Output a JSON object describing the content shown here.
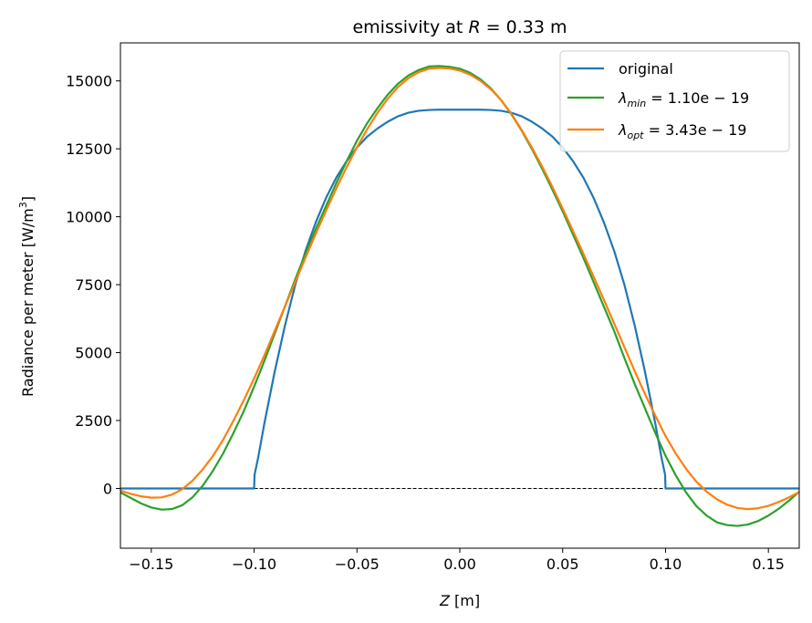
{
  "chart_data": {
    "type": "line",
    "title_prefix": "emissivity at ",
    "title_var": "R",
    "title_suffix": " = 0.33 m",
    "xlabel_var": "Z",
    "xlabel_unit": " [m]",
    "ylabel": "Radiance per meter [W/m",
    "ylabel_sup": "3",
    "ylabel_close": "]",
    "xlim": [
      -0.165,
      0.165
    ],
    "ylim": [
      -2200,
      16400
    ],
    "xticks": [
      -0.15,
      -0.1,
      -0.05,
      0.0,
      0.05,
      0.1,
      0.15
    ],
    "xtick_labels": [
      "−0.15",
      "−0.10",
      "−0.05",
      "0.00",
      "0.05",
      "0.10",
      "0.15"
    ],
    "yticks": [
      0,
      2500,
      5000,
      7500,
      10000,
      12500,
      15000
    ],
    "ytick_labels": [
      "0",
      "2500",
      "5000",
      "7500",
      "10000",
      "12500",
      "15000"
    ],
    "zero_line": true,
    "legend_position": "top-right",
    "series": [
      {
        "name": "original",
        "color": "#1f77b4",
        "x": [
          -0.165,
          -0.1,
          -0.0998,
          -0.098,
          -0.095,
          -0.09,
          -0.085,
          -0.08,
          -0.075,
          -0.07,
          -0.065,
          -0.06,
          -0.055,
          -0.05,
          -0.045,
          -0.04,
          -0.035,
          -0.03,
          -0.025,
          -0.02,
          -0.015,
          -0.01,
          -0.005,
          0.0,
          0.005,
          0.01,
          0.015,
          0.02,
          0.025,
          0.03,
          0.035,
          0.04,
          0.045,
          0.05,
          0.055,
          0.06,
          0.065,
          0.07,
          0.075,
          0.08,
          0.085,
          0.09,
          0.095,
          0.098,
          0.0998,
          0.1,
          0.165
        ],
        "y": [
          0,
          0,
          500,
          1150,
          2400,
          4300,
          6000,
          7500,
          8750,
          9800,
          10700,
          11450,
          12050,
          12550,
          12950,
          13250,
          13500,
          13700,
          13830,
          13900,
          13930,
          13940,
          13940,
          13940,
          13940,
          13940,
          13930,
          13900,
          13830,
          13700,
          13500,
          13250,
          12950,
          12550,
          12050,
          11450,
          10700,
          9800,
          8750,
          7500,
          6000,
          4300,
          2400,
          1150,
          500,
          0,
          0
        ]
      },
      {
        "name_var": "λ",
        "name_sub": "min",
        "name_value": " = 1.10e − 19",
        "color": "#2ca02c",
        "x": [
          -0.165,
          -0.16,
          -0.155,
          -0.15,
          -0.145,
          -0.14,
          -0.135,
          -0.13,
          -0.125,
          -0.12,
          -0.115,
          -0.11,
          -0.105,
          -0.1,
          -0.095,
          -0.09,
          -0.085,
          -0.08,
          -0.075,
          -0.07,
          -0.065,
          -0.06,
          -0.055,
          -0.05,
          -0.045,
          -0.04,
          -0.035,
          -0.03,
          -0.025,
          -0.02,
          -0.015,
          -0.01,
          -0.005,
          0.0,
          0.005,
          0.01,
          0.015,
          0.02,
          0.025,
          0.03,
          0.035,
          0.04,
          0.045,
          0.05,
          0.055,
          0.06,
          0.065,
          0.07,
          0.075,
          0.08,
          0.085,
          0.09,
          0.095,
          0.1,
          0.105,
          0.11,
          0.115,
          0.12,
          0.125,
          0.13,
          0.135,
          0.14,
          0.145,
          0.15,
          0.155,
          0.16,
          0.165
        ],
        "y": [
          -150,
          -350,
          -550,
          -700,
          -780,
          -760,
          -620,
          -330,
          100,
          650,
          1300,
          2050,
          2850,
          3750,
          4700,
          5700,
          6700,
          7700,
          8650,
          9550,
          10400,
          11250,
          12050,
          12800,
          13450,
          14000,
          14500,
          14900,
          15200,
          15400,
          15530,
          15550,
          15520,
          15450,
          15300,
          15060,
          14730,
          14300,
          13780,
          13180,
          12500,
          11770,
          11000,
          10200,
          9350,
          8500,
          7600,
          6700,
          5800,
          4800,
          3850,
          2950,
          2050,
          1200,
          480,
          -150,
          -650,
          -1000,
          -1250,
          -1350,
          -1380,
          -1330,
          -1200,
          -1000,
          -750,
          -450,
          -120
        ]
      },
      {
        "name_var": "λ",
        "name_sub": "opt",
        "name_value": " = 3.43e − 19",
        "color": "#ff7f0e",
        "x": [
          -0.165,
          -0.16,
          -0.155,
          -0.15,
          -0.145,
          -0.14,
          -0.135,
          -0.13,
          -0.125,
          -0.12,
          -0.115,
          -0.11,
          -0.105,
          -0.1,
          -0.095,
          -0.09,
          -0.085,
          -0.08,
          -0.075,
          -0.07,
          -0.065,
          -0.06,
          -0.055,
          -0.05,
          -0.045,
          -0.04,
          -0.035,
          -0.03,
          -0.025,
          -0.02,
          -0.015,
          -0.01,
          -0.005,
          0.0,
          0.005,
          0.01,
          0.015,
          0.02,
          0.025,
          0.03,
          0.035,
          0.04,
          0.045,
          0.05,
          0.055,
          0.06,
          0.065,
          0.07,
          0.075,
          0.08,
          0.085,
          0.09,
          0.095,
          0.1,
          0.105,
          0.11,
          0.115,
          0.12,
          0.125,
          0.13,
          0.135,
          0.14,
          0.145,
          0.15,
          0.155,
          0.16,
          0.165
        ],
        "y": [
          -80,
          -200,
          -290,
          -340,
          -330,
          -230,
          -30,
          280,
          700,
          1200,
          1800,
          2500,
          3250,
          4050,
          4900,
          5800,
          6700,
          7600,
          8500,
          9380,
          10230,
          11050,
          11830,
          12560,
          13230,
          13830,
          14350,
          14780,
          15100,
          15320,
          15450,
          15480,
          15460,
          15380,
          15230,
          15000,
          14700,
          14300,
          13800,
          13200,
          12550,
          11850,
          11100,
          10300,
          9480,
          8650,
          7800,
          6950,
          6080,
          5200,
          4320,
          3480,
          2680,
          1930,
          1280,
          720,
          250,
          -120,
          -400,
          -600,
          -720,
          -760,
          -730,
          -640,
          -500,
          -330,
          -130
        ]
      }
    ]
  }
}
